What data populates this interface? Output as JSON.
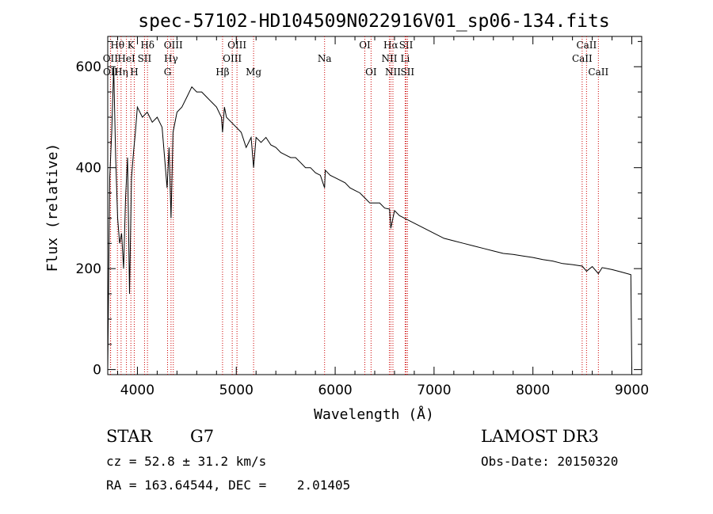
{
  "chart_data": {
    "type": "line",
    "title": "spec-57102-HD104509N022916V01_sp06-134.fits",
    "xlabel": "Wavelength (Å)",
    "ylabel": "Flux (relative)",
    "xlim": [
      3700,
      9100
    ],
    "ylim": [
      -10,
      660
    ],
    "xticks": [
      4000,
      5000,
      6000,
      7000,
      8000,
      9000
    ],
    "yticks": [
      0,
      200,
      400,
      600
    ],
    "series": [
      {
        "name": "spectrum",
        "x": [
          3700,
          3720,
          3740,
          3760,
          3780,
          3800,
          3820,
          3840,
          3860,
          3880,
          3900,
          3920,
          3940,
          3960,
          3980,
          4000,
          4050,
          4100,
          4150,
          4200,
          4250,
          4300,
          4320,
          4340,
          4360,
          4400,
          4450,
          4500,
          4550,
          4600,
          4650,
          4700,
          4750,
          4800,
          4850,
          4861,
          4880,
          4900,
          4950,
          5000,
          5050,
          5100,
          5150,
          5175,
          5200,
          5250,
          5300,
          5350,
          5400,
          5450,
          5500,
          5550,
          5600,
          5650,
          5700,
          5750,
          5800,
          5850,
          5893,
          5900,
          5950,
          6000,
          6050,
          6100,
          6150,
          6200,
          6250,
          6300,
          6350,
          6400,
          6450,
          6500,
          6550,
          6563,
          6600,
          6650,
          6700,
          6800,
          6900,
          7000,
          7100,
          7200,
          7300,
          7400,
          7500,
          7600,
          7700,
          7800,
          7900,
          8000,
          8100,
          8200,
          8300,
          8400,
          8498,
          8542,
          8600,
          8662,
          8700,
          8800,
          8900,
          8990,
          9000
        ],
        "y": [
          0,
          380,
          470,
          600,
          420,
          300,
          250,
          270,
          200,
          340,
          420,
          150,
          380,
          430,
          470,
          520,
          500,
          510,
          490,
          500,
          480,
          360,
          440,
          300,
          470,
          510,
          520,
          540,
          560,
          550,
          550,
          540,
          530,
          520,
          500,
          470,
          520,
          500,
          490,
          480,
          470,
          440,
          460,
          400,
          460,
          450,
          460,
          445,
          440,
          430,
          425,
          420,
          420,
          410,
          400,
          400,
          390,
          385,
          360,
          395,
          385,
          380,
          375,
          370,
          360,
          355,
          350,
          340,
          330,
          330,
          330,
          320,
          318,
          280,
          315,
          305,
          300,
          290,
          280,
          270,
          260,
          255,
          250,
          245,
          240,
          235,
          230,
          228,
          225,
          222,
          218,
          215,
          210,
          208,
          205,
          195,
          204,
          190,
          202,
          198,
          193,
          188,
          0
        ]
      }
    ],
    "spectral_lines": [
      {
        "label": "Hθ",
        "wl": 3798,
        "row": 1
      },
      {
        "label": "OII",
        "wl": 3727,
        "row": 2
      },
      {
        "label": "OII",
        "wl": 3729,
        "row": 3
      },
      {
        "label": "Hη",
        "wl": 3835,
        "row": 3
      },
      {
        "label": "K",
        "wl": 3934,
        "row": 1
      },
      {
        "label": "HeI",
        "wl": 3889,
        "row": 2
      },
      {
        "label": "H",
        "wl": 3968,
        "row": 3
      },
      {
        "label": "Hδ",
        "wl": 4102,
        "row": 1
      },
      {
        "label": "SII",
        "wl": 4072,
        "row": 2
      },
      {
        "label": "OIII",
        "wl": 4363,
        "row": 1
      },
      {
        "label": "Hγ",
        "wl": 4340,
        "row": 2
      },
      {
        "label": "G",
        "wl": 4305,
        "row": 3
      },
      {
        "label": "Hβ",
        "wl": 4861,
        "row": 3
      },
      {
        "label": "OIII",
        "wl": 5007,
        "row": 1
      },
      {
        "label": "OIII",
        "wl": 4959,
        "row": 2
      },
      {
        "label": "Mg",
        "wl": 5175,
        "row": 3
      },
      {
        "label": "Na",
        "wl": 5893,
        "row": 2
      },
      {
        "label": "OI",
        "wl": 6300,
        "row": 1
      },
      {
        "label": "OI",
        "wl": 6363,
        "row": 3
      },
      {
        "label": "Hα",
        "wl": 6563,
        "row": 1
      },
      {
        "label": "SII",
        "wl": 6717,
        "row": 1
      },
      {
        "label": "NII",
        "wl": 6548,
        "row": 2
      },
      {
        "label": "Li",
        "wl": 6708,
        "row": 2
      },
      {
        "label": "NII",
        "wl": 6584,
        "row": 3
      },
      {
        "label": "SII",
        "wl": 6731,
        "row": 3
      },
      {
        "label": "CaII",
        "wl": 8542,
        "row": 1
      },
      {
        "label": "CaII",
        "wl": 8498,
        "row": 2
      },
      {
        "label": "CaII",
        "wl": 8662,
        "row": 3
      }
    ]
  },
  "info": {
    "object_class": "STAR",
    "subclass": "G7",
    "redshift": "cz = 52.8 ± 31.2 km/s",
    "coordinates": "RA = 163.64544, DEC =    2.01405",
    "survey": "LAMOST DR3",
    "obs_date": "Obs-Date: 20150320"
  }
}
